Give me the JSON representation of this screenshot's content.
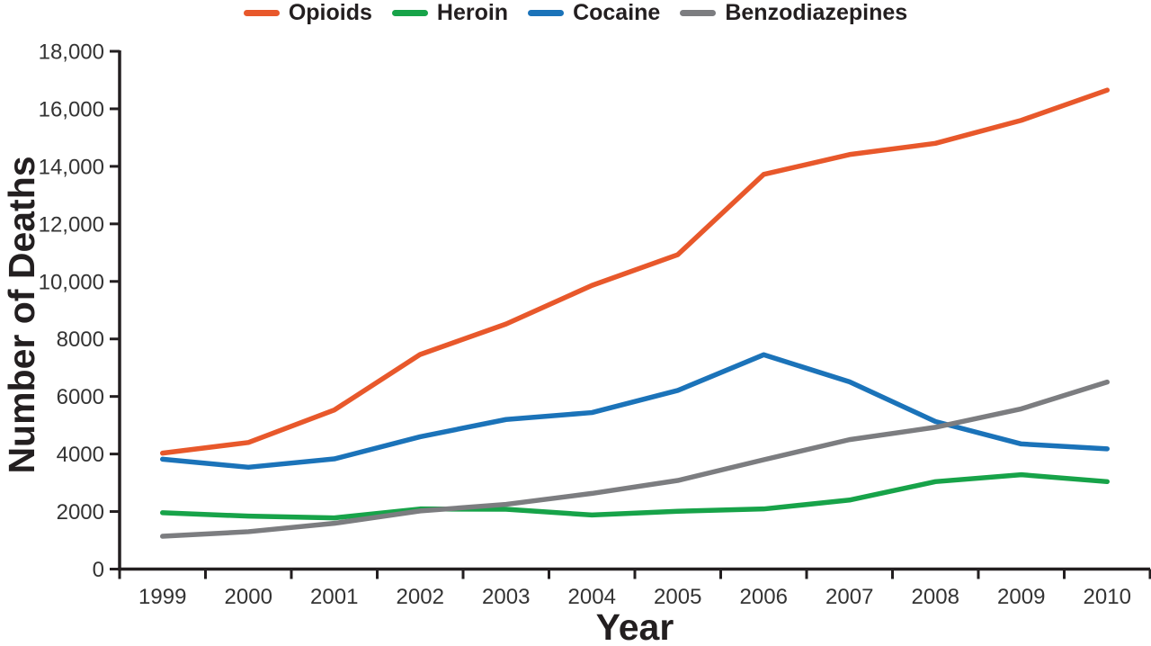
{
  "chart_data": {
    "type": "line",
    "title": "",
    "xlabel": "Year",
    "ylabel": "Number of Deaths",
    "x": [
      "1999",
      "2000",
      "2001",
      "2002",
      "2003",
      "2004",
      "2005",
      "2006",
      "2007",
      "2008",
      "2009",
      "2010"
    ],
    "series": [
      {
        "name": "Opioids",
        "color": "#e8582b",
        "values": [
          4030,
          4400,
          5530,
          7460,
          8520,
          9860,
          10930,
          13720,
          14410,
          14800,
          15600,
          16650
        ]
      },
      {
        "name": "Heroin",
        "color": "#17a349",
        "values": [
          1960,
          1840,
          1780,
          2090,
          2080,
          1880,
          2010,
          2090,
          2400,
          3040,
          3280,
          3040
        ]
      },
      {
        "name": "Cocaine",
        "color": "#1b73b9",
        "values": [
          3820,
          3540,
          3830,
          4600,
          5200,
          5440,
          6210,
          7450,
          6510,
          5130,
          4350,
          4180
        ]
      },
      {
        "name": "Benzodiazepines",
        "color": "#7c7d80",
        "values": [
          1140,
          1300,
          1590,
          2020,
          2250,
          2630,
          3080,
          3800,
          4500,
          4930,
          5570,
          6500
        ]
      }
    ],
    "ylim": [
      0,
      18000
    ],
    "yticks": [
      {
        "value": 0,
        "label": "0"
      },
      {
        "value": 2000,
        "label": "2000"
      },
      {
        "value": 4000,
        "label": "4000"
      },
      {
        "value": 6000,
        "label": "6000"
      },
      {
        "value": 8000,
        "label": "8000"
      },
      {
        "value": 10000,
        "label": "10,000"
      },
      {
        "value": 12000,
        "label": "12,000"
      },
      {
        "value": 14000,
        "label": "14,000"
      },
      {
        "value": 16000,
        "label": "16,000"
      },
      {
        "value": 18000,
        "label": "18,000"
      }
    ],
    "legend_position": "top",
    "grid": false,
    "axis_color": "#231f20"
  }
}
